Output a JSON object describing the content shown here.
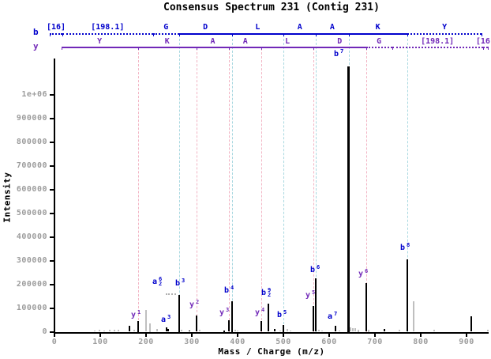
{
  "chart_data": {
    "type": "bar",
    "subtype": "annotated-mass-spectrum",
    "title": "Consensus Spectrum 231 (Contig 231)",
    "xlabel": "Mass / Charge (m/z)",
    "ylabel": "Intensity",
    "xlim": [
      0,
      947
    ],
    "ylim": [
      0,
      1120000
    ],
    "x_ticks": [
      0,
      100,
      200,
      300,
      400,
      500,
      600,
      700,
      800,
      900
    ],
    "y_ticks": [
      {
        "value": 0,
        "label": "0"
      },
      {
        "value": 100000,
        "label": "100000"
      },
      {
        "value": 200000,
        "label": "200000"
      },
      {
        "value": 300000,
        "label": "300000"
      },
      {
        "value": 400000,
        "label": "400000"
      },
      {
        "value": 500000,
        "label": "500000"
      },
      {
        "value": 600000,
        "label": "600000"
      },
      {
        "value": 700000,
        "label": "700000"
      },
      {
        "value": 800000,
        "label": "800000"
      },
      {
        "value": 900000,
        "label": "900000"
      },
      {
        "value": 1000000,
        "label": "1e+06"
      }
    ],
    "colors": {
      "b_series": "#0000CC",
      "y_series": "#7128B8",
      "y_guide": "#F2B3C3",
      "b_guide": "#A8D8E0",
      "gray_peak": "#BFBFBF",
      "black_peak": "#000000",
      "axis_text": "#9C9C9C",
      "leader": "#B0B0B0"
    },
    "ladders": {
      "b": {
        "header": "b",
        "segments": [
          {
            "text": "[16]",
            "from": -10,
            "to": 17,
            "style": "dotted"
          },
          {
            "text": "[198.1]",
            "from": 17,
            "to": 215.1,
            "style": "dotted"
          },
          {
            "text": "G",
            "from": 215.1,
            "to": 272.1,
            "style": "dotted"
          },
          {
            "text": "D",
            "from": 272.1,
            "to": 387.2,
            "style": "solid"
          },
          {
            "text": "L",
            "from": 387.2,
            "to": 500.2,
            "style": "solid"
          },
          {
            "text": "A",
            "from": 500.2,
            "to": 571.3,
            "style": "solid"
          },
          {
            "text": "A",
            "from": 571.3,
            "to": 642.3,
            "style": "solid"
          },
          {
            "text": "K",
            "from": 642.3,
            "to": 770.4,
            "style": "solid"
          },
          {
            "text": "Y",
            "from": 770.4,
            "to": 933.5,
            "style": "dotted"
          }
        ]
      },
      "y": {
        "header": "y",
        "segments": [
          {
            "text": "Y",
            "from": 15,
            "to": 182.1,
            "style": "solid"
          },
          {
            "text": "K",
            "from": 182.1,
            "to": 310.2,
            "style": "solid"
          },
          {
            "text": "A",
            "from": 310.2,
            "to": 381.2,
            "style": "solid"
          },
          {
            "text": "A",
            "from": 381.2,
            "to": 452.3,
            "style": "solid"
          },
          {
            "text": "L",
            "from": 452.3,
            "to": 565.3,
            "style": "solid"
          },
          {
            "text": "D",
            "from": 565.3,
            "to": 680.4,
            "style": "solid"
          },
          {
            "text": "G",
            "from": 680.4,
            "to": 737.4,
            "style": "dotted"
          },
          {
            "text": "[198.1]",
            "from": 737.4,
            "to": 935.5,
            "style": "dotted"
          },
          {
            "text": "[16]",
            "from": 935.5,
            "to": 947,
            "style": "dotted"
          }
        ]
      }
    },
    "guide_lines": {
      "y_ion_mz": [
        182.1,
        310.2,
        381.2,
        452.3,
        565.3,
        680.4
      ],
      "b_ion_mz": [
        272.1,
        387.2,
        500.2,
        571.3,
        642.3,
        770.4
      ]
    },
    "ions": [
      {
        "id": "y1",
        "series": "y",
        "letter": "y",
        "sup": "1"
      },
      {
        "id": "y2",
        "series": "y",
        "letter": "y",
        "sup": "2"
      },
      {
        "id": "y3",
        "series": "y",
        "letter": "y",
        "sup": "3"
      },
      {
        "id": "y4",
        "series": "y",
        "letter": "y",
        "sup": "4"
      },
      {
        "id": "y5",
        "series": "y",
        "letter": "y",
        "sup": "5"
      },
      {
        "id": "y6",
        "series": "y",
        "letter": "y",
        "sup": "6"
      },
      {
        "id": "a3",
        "series": "b",
        "letter": "a",
        "sup": "3"
      },
      {
        "id": "a6_2",
        "series": "b",
        "letter": "a",
        "sup": "6",
        "sub": "2"
      },
      {
        "id": "b3",
        "series": "b",
        "letter": "b",
        "sup": "3"
      },
      {
        "id": "b4",
        "series": "b",
        "letter": "b",
        "sup": "4"
      },
      {
        "id": "b9_2",
        "series": "b",
        "letter": "b",
        "sup": "9",
        "sub": "2"
      },
      {
        "id": "b5",
        "series": "b",
        "letter": "b",
        "sup": "5"
      },
      {
        "id": "y5b",
        "series": "y",
        "letter": "y",
        "sup": "5"
      },
      {
        "id": "b6",
        "series": "b",
        "letter": "b",
        "sup": "6"
      },
      {
        "id": "a7",
        "series": "b",
        "letter": "a",
        "sup": "7"
      },
      {
        "id": "b7",
        "series": "b",
        "letter": "b",
        "sup": "7"
      },
      {
        "id": "b8",
        "series": "b",
        "letter": "b",
        "sup": "8"
      }
    ],
    "peaks": [
      {
        "mz": 88,
        "intensity": 6000,
        "color": "gray"
      },
      {
        "mz": 98,
        "intensity": 7000,
        "color": "gray"
      },
      {
        "mz": 109,
        "intensity": 6000,
        "color": "gray"
      },
      {
        "mz": 120,
        "intensity": 8000,
        "color": "gray"
      },
      {
        "mz": 131,
        "intensity": 9000,
        "color": "gray"
      },
      {
        "mz": 140,
        "intensity": 7000,
        "color": "gray"
      },
      {
        "mz": 163,
        "intensity": 24000,
        "color": "black"
      },
      {
        "mz": 174,
        "intensity": 8000,
        "color": "gray"
      },
      {
        "mz": 182.1,
        "intensity": 45000,
        "color": "black",
        "ion": "y1"
      },
      {
        "mz": 200,
        "intensity": 91000,
        "color": "gray"
      },
      {
        "mz": 207.8,
        "intensity": 35000,
        "color": "gray"
      },
      {
        "mz": 224,
        "intensity": 11000,
        "color": "gray"
      },
      {
        "mz": 244.1,
        "intensity": 17000,
        "color": "black",
        "ion": "a3"
      },
      {
        "mz": 249,
        "intensity": 12000,
        "color": "black"
      },
      {
        "mz": 272.1,
        "intensity": 155000,
        "color": "black",
        "ion": "b3",
        "ion2": "a6_2"
      },
      {
        "mz": 278,
        "intensity": 8000,
        "color": "gray"
      },
      {
        "mz": 295,
        "intensity": 6000,
        "color": "black"
      },
      {
        "mz": 310.2,
        "intensity": 69000,
        "color": "black",
        "ion": "y2"
      },
      {
        "mz": 317,
        "intensity": 8000,
        "color": "gray"
      },
      {
        "mz": 370,
        "intensity": 5000,
        "color": "black"
      },
      {
        "mz": 381.2,
        "intensity": 49000,
        "color": "black",
        "ion": "y3"
      },
      {
        "mz": 387.2,
        "intensity": 130000,
        "color": "black",
        "ion": "b4"
      },
      {
        "mz": 395,
        "intensity": 7000,
        "color": "gray"
      },
      {
        "mz": 400,
        "intensity": 6000,
        "color": "gray"
      },
      {
        "mz": 452.3,
        "intensity": 46000,
        "color": "black",
        "ion": "y4"
      },
      {
        "mz": 467.2,
        "intensity": 119000,
        "color": "black",
        "ion": "b9_2"
      },
      {
        "mz": 481,
        "intensity": 11000,
        "color": "black"
      },
      {
        "mz": 493,
        "intensity": 6000,
        "color": "gray"
      },
      {
        "mz": 500.2,
        "intensity": 30000,
        "color": "black",
        "ion": "b5"
      },
      {
        "mz": 508,
        "intensity": 13000,
        "color": "gray"
      },
      {
        "mz": 515,
        "intensity": 6000,
        "color": "gray"
      },
      {
        "mz": 565.3,
        "intensity": 108000,
        "color": "black",
        "ion": "y5"
      },
      {
        "mz": 571.3,
        "intensity": 224000,
        "color": "black",
        "ion": "b6"
      },
      {
        "mz": 578,
        "intensity": 8000,
        "color": "gray"
      },
      {
        "mz": 584,
        "intensity": 6000,
        "color": "gray"
      },
      {
        "mz": 614.3,
        "intensity": 24000,
        "color": "black",
        "ion": "a7"
      },
      {
        "mz": 622,
        "intensity": 6000,
        "color": "gray"
      },
      {
        "mz": 642.3,
        "intensity": 1120000,
        "color": "black",
        "ion": "b7",
        "w": 3
      },
      {
        "mz": 647,
        "intensity": 18000,
        "color": "gray"
      },
      {
        "mz": 652,
        "intensity": 14000,
        "color": "gray"
      },
      {
        "mz": 657,
        "intensity": 16000,
        "color": "gray"
      },
      {
        "mz": 663,
        "intensity": 10000,
        "color": "gray"
      },
      {
        "mz": 680.4,
        "intensity": 206000,
        "color": "black",
        "ion": "y6"
      },
      {
        "mz": 687,
        "intensity": 10000,
        "color": "gray"
      },
      {
        "mz": 720,
        "intensity": 11000,
        "color": "black"
      },
      {
        "mz": 753,
        "intensity": 7000,
        "color": "gray"
      },
      {
        "mz": 770.4,
        "intensity": 306000,
        "color": "black",
        "ion": "b8"
      },
      {
        "mz": 785,
        "intensity": 127000,
        "color": "gray"
      },
      {
        "mz": 829,
        "intensity": 9000,
        "color": "gray"
      },
      {
        "mz": 911,
        "intensity": 66000,
        "color": "black"
      },
      {
        "mz": 947,
        "intensity": 9000,
        "color": "gray"
      }
    ]
  }
}
